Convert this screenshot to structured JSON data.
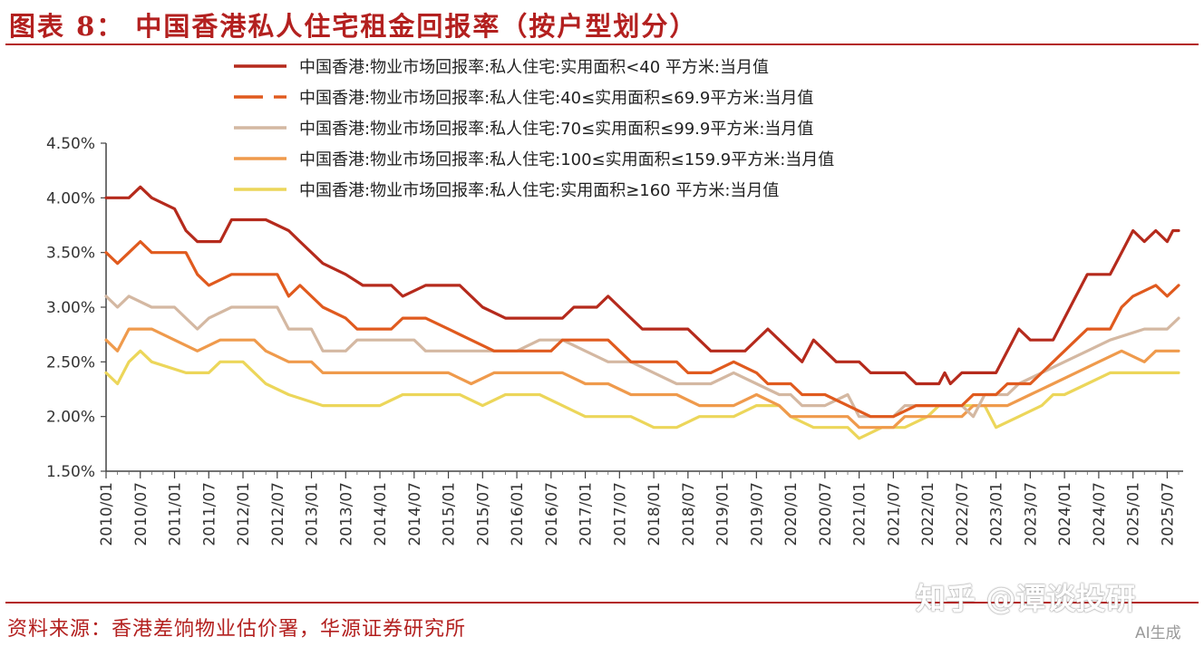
{
  "header": {
    "title": "图表 8： 中国香港私人住宅租金回报率（按户型划分）"
  },
  "footer": {
    "source": "资料来源：香港差饷物业估价署，华源证券研究所",
    "watermark": "知乎 @谭谈投研",
    "ai_tag": "AI生成"
  },
  "chart_data": {
    "type": "line",
    "title": "图表 8： 中国香港私人住宅租金回报率（按户型划分）",
    "xlabel": "",
    "ylabel": "",
    "ylim": [
      1.5,
      4.5
    ],
    "xlim": [
      "2010/01",
      "2025/09"
    ],
    "grid": false,
    "legend_position": "top",
    "y_ticks": [
      "4.50%",
      "4.00%",
      "3.50%",
      "3.00%",
      "2.50%",
      "2.00%",
      "1.50%"
    ],
    "x_ticks": [
      "2010/01",
      "2010/07",
      "2011/01",
      "2011/07",
      "2012/01",
      "2012/07",
      "2013/01",
      "2013/07",
      "2014/01",
      "2014/07",
      "2015/01",
      "2015/07",
      "2016/01",
      "2016/07",
      "2017/01",
      "2017/07",
      "2018/01",
      "2018/07",
      "2019/01",
      "2019/07",
      "2020/01",
      "2020/07",
      "2021/01",
      "2021/07",
      "2022/01",
      "2022/07",
      "2023/01",
      "2023/07",
      "2024/01",
      "2024/07",
      "2025/01",
      "2025/07"
    ],
    "series": [
      {
        "name": "中国香港:物业市场回报率:私人住宅:实用面积<40 平方米:当月值",
        "color": "#b52a1c",
        "dash": "solid",
        "points": [
          [
            "2010/01",
            4.0
          ],
          [
            "2010/05",
            4.0
          ],
          [
            "2010/07",
            4.1
          ],
          [
            "2010/09",
            4.0
          ],
          [
            "2011/01",
            3.9
          ],
          [
            "2011/03",
            3.7
          ],
          [
            "2011/05",
            3.6
          ],
          [
            "2011/09",
            3.6
          ],
          [
            "2011/11",
            3.8
          ],
          [
            "2012/05",
            3.8
          ],
          [
            "2012/09",
            3.7
          ],
          [
            "2012/11",
            3.6
          ],
          [
            "2013/03",
            3.4
          ],
          [
            "2013/07",
            3.3
          ],
          [
            "2013/10",
            3.2
          ],
          [
            "2014/03",
            3.2
          ],
          [
            "2014/05",
            3.1
          ],
          [
            "2014/09",
            3.2
          ],
          [
            "2015/03",
            3.2
          ],
          [
            "2015/07",
            3.0
          ],
          [
            "2015/11",
            2.9
          ],
          [
            "2016/09",
            2.9
          ],
          [
            "2016/11",
            3.0
          ],
          [
            "2017/03",
            3.0
          ],
          [
            "2017/05",
            3.1
          ],
          [
            "2017/07",
            3.0
          ],
          [
            "2017/09",
            2.9
          ],
          [
            "2017/11",
            2.8
          ],
          [
            "2018/07",
            2.8
          ],
          [
            "2018/09",
            2.7
          ],
          [
            "2018/11",
            2.6
          ],
          [
            "2019/05",
            2.6
          ],
          [
            "2019/09",
            2.8
          ],
          [
            "2019/11",
            2.7
          ],
          [
            "2020/01",
            2.6
          ],
          [
            "2020/03",
            2.5
          ],
          [
            "2020/05",
            2.7
          ],
          [
            "2020/07",
            2.6
          ],
          [
            "2020/09",
            2.5
          ],
          [
            "2021/01",
            2.5
          ],
          [
            "2021/03",
            2.4
          ],
          [
            "2021/09",
            2.4
          ],
          [
            "2021/11",
            2.3
          ],
          [
            "2022/03",
            2.3
          ],
          [
            "2022/04",
            2.4
          ],
          [
            "2022/05",
            2.3
          ],
          [
            "2022/07",
            2.4
          ],
          [
            "2023/01",
            2.4
          ],
          [
            "2023/03",
            2.6
          ],
          [
            "2023/05",
            2.8
          ],
          [
            "2023/07",
            2.7
          ],
          [
            "2023/11",
            2.7
          ],
          [
            "2024/01",
            2.9
          ],
          [
            "2024/03",
            3.1
          ],
          [
            "2024/05",
            3.3
          ],
          [
            "2024/09",
            3.3
          ],
          [
            "2024/11",
            3.5
          ],
          [
            "2025/01",
            3.7
          ],
          [
            "2025/03",
            3.6
          ],
          [
            "2025/05",
            3.7
          ],
          [
            "2025/07",
            3.6
          ],
          [
            "2025/08",
            3.7
          ],
          [
            "2025/09",
            3.7
          ]
        ]
      },
      {
        "name": "中国香港:物业市场回报率:私人住宅:40≤实用面积≤69.9平方米:当月值",
        "color": "#e05a1e",
        "dash": "long-dash",
        "points": [
          [
            "2010/01",
            3.5
          ],
          [
            "2010/03",
            3.4
          ],
          [
            "2010/05",
            3.5
          ],
          [
            "2010/07",
            3.6
          ],
          [
            "2010/09",
            3.5
          ],
          [
            "2011/03",
            3.5
          ],
          [
            "2011/05",
            3.3
          ],
          [
            "2011/07",
            3.2
          ],
          [
            "2011/11",
            3.3
          ],
          [
            "2012/07",
            3.3
          ],
          [
            "2012/09",
            3.1
          ],
          [
            "2012/11",
            3.2
          ],
          [
            "2013/03",
            3.0
          ],
          [
            "2013/07",
            2.9
          ],
          [
            "2013/09",
            2.8
          ],
          [
            "2014/03",
            2.8
          ],
          [
            "2014/05",
            2.9
          ],
          [
            "2014/09",
            2.9
          ],
          [
            "2015/01",
            2.8
          ],
          [
            "2015/05",
            2.7
          ],
          [
            "2015/09",
            2.6
          ],
          [
            "2016/07",
            2.6
          ],
          [
            "2016/09",
            2.7
          ],
          [
            "2017/05",
            2.7
          ],
          [
            "2017/07",
            2.6
          ],
          [
            "2017/09",
            2.5
          ],
          [
            "2018/05",
            2.5
          ],
          [
            "2018/07",
            2.4
          ],
          [
            "2018/11",
            2.4
          ],
          [
            "2019/03",
            2.5
          ],
          [
            "2019/07",
            2.4
          ],
          [
            "2019/09",
            2.3
          ],
          [
            "2020/01",
            2.3
          ],
          [
            "2020/03",
            2.2
          ],
          [
            "2020/07",
            2.2
          ],
          [
            "2020/11",
            2.1
          ],
          [
            "2021/03",
            2.0
          ],
          [
            "2021/07",
            2.0
          ],
          [
            "2021/11",
            2.1
          ],
          [
            "2022/07",
            2.1
          ],
          [
            "2022/09",
            2.2
          ],
          [
            "2023/01",
            2.2
          ],
          [
            "2023/03",
            2.3
          ],
          [
            "2023/07",
            2.3
          ],
          [
            "2023/09",
            2.4
          ],
          [
            "2023/11",
            2.5
          ],
          [
            "2024/01",
            2.6
          ],
          [
            "2024/03",
            2.7
          ],
          [
            "2024/05",
            2.8
          ],
          [
            "2024/09",
            2.8
          ],
          [
            "2024/11",
            3.0
          ],
          [
            "2025/01",
            3.1
          ],
          [
            "2025/05",
            3.2
          ],
          [
            "2025/07",
            3.1
          ],
          [
            "2025/09",
            3.2
          ]
        ]
      },
      {
        "name": "中国香港:物业市场回报率:私人住宅:70≤实用面积≤99.9平方米:当月值",
        "color": "#d4b8a2",
        "dash": "solid",
        "points": [
          [
            "2010/01",
            3.1
          ],
          [
            "2010/03",
            3.0
          ],
          [
            "2010/05",
            3.1
          ],
          [
            "2010/09",
            3.0
          ],
          [
            "2011/01",
            3.0
          ],
          [
            "2011/03",
            2.9
          ],
          [
            "2011/05",
            2.8
          ],
          [
            "2011/07",
            2.9
          ],
          [
            "2011/11",
            3.0
          ],
          [
            "2012/07",
            3.0
          ],
          [
            "2012/09",
            2.8
          ],
          [
            "2013/01",
            2.8
          ],
          [
            "2013/03",
            2.6
          ],
          [
            "2013/07",
            2.6
          ],
          [
            "2013/09",
            2.7
          ],
          [
            "2014/07",
            2.7
          ],
          [
            "2014/09",
            2.6
          ],
          [
            "2015/05",
            2.6
          ],
          [
            "2015/09",
            2.6
          ],
          [
            "2016/01",
            2.6
          ],
          [
            "2016/05",
            2.7
          ],
          [
            "2016/09",
            2.7
          ],
          [
            "2017/01",
            2.6
          ],
          [
            "2017/05",
            2.5
          ],
          [
            "2017/09",
            2.5
          ],
          [
            "2018/01",
            2.4
          ],
          [
            "2018/05",
            2.3
          ],
          [
            "2018/11",
            2.3
          ],
          [
            "2019/03",
            2.4
          ],
          [
            "2019/07",
            2.3
          ],
          [
            "2019/11",
            2.2
          ],
          [
            "2020/01",
            2.2
          ],
          [
            "2020/03",
            2.1
          ],
          [
            "2020/07",
            2.1
          ],
          [
            "2020/11",
            2.2
          ],
          [
            "2021/01",
            2.0
          ],
          [
            "2021/07",
            2.0
          ],
          [
            "2021/09",
            2.1
          ],
          [
            "2022/07",
            2.1
          ],
          [
            "2022/09",
            2.0
          ],
          [
            "2022/11",
            2.2
          ],
          [
            "2023/03",
            2.2
          ],
          [
            "2023/05",
            2.3
          ],
          [
            "2023/09",
            2.4
          ],
          [
            "2024/01",
            2.5
          ],
          [
            "2024/05",
            2.6
          ],
          [
            "2024/09",
            2.7
          ],
          [
            "2025/03",
            2.8
          ],
          [
            "2025/07",
            2.8
          ],
          [
            "2025/09",
            2.9
          ]
        ]
      },
      {
        "name": "中国香港:物业市场回报率:私人住宅:100≤实用面积≤159.9平方米:当月值",
        "color": "#ef9a4c",
        "dash": "solid",
        "points": [
          [
            "2010/01",
            2.7
          ],
          [
            "2010/03",
            2.6
          ],
          [
            "2010/05",
            2.8
          ],
          [
            "2010/09",
            2.8
          ],
          [
            "2011/01",
            2.7
          ],
          [
            "2011/05",
            2.6
          ],
          [
            "2011/09",
            2.7
          ],
          [
            "2012/03",
            2.7
          ],
          [
            "2012/05",
            2.6
          ],
          [
            "2012/09",
            2.5
          ],
          [
            "2013/01",
            2.5
          ],
          [
            "2013/03",
            2.4
          ],
          [
            "2014/09",
            2.4
          ],
          [
            "2015/01",
            2.4
          ],
          [
            "2015/05",
            2.3
          ],
          [
            "2015/09",
            2.4
          ],
          [
            "2016/09",
            2.4
          ],
          [
            "2017/01",
            2.3
          ],
          [
            "2017/05",
            2.3
          ],
          [
            "2017/09",
            2.2
          ],
          [
            "2018/05",
            2.2
          ],
          [
            "2018/09",
            2.1
          ],
          [
            "2019/03",
            2.1
          ],
          [
            "2019/07",
            2.2
          ],
          [
            "2019/11",
            2.1
          ],
          [
            "2020/01",
            2.0
          ],
          [
            "2020/07",
            2.0
          ],
          [
            "2020/11",
            2.0
          ],
          [
            "2021/01",
            1.9
          ],
          [
            "2021/07",
            1.9
          ],
          [
            "2021/09",
            2.0
          ],
          [
            "2022/07",
            2.0
          ],
          [
            "2022/09",
            2.1
          ],
          [
            "2023/03",
            2.1
          ],
          [
            "2023/07",
            2.2
          ],
          [
            "2023/11",
            2.3
          ],
          [
            "2024/03",
            2.4
          ],
          [
            "2024/07",
            2.5
          ],
          [
            "2024/11",
            2.6
          ],
          [
            "2025/03",
            2.5
          ],
          [
            "2025/05",
            2.6
          ],
          [
            "2025/09",
            2.6
          ]
        ]
      },
      {
        "name": "中国香港:物业市场回报率:私人住宅:实用面积≥160 平方米:当月值",
        "color": "#ecd65a",
        "dash": "solid",
        "points": [
          [
            "2010/01",
            2.4
          ],
          [
            "2010/03",
            2.3
          ],
          [
            "2010/05",
            2.5
          ],
          [
            "2010/07",
            2.6
          ],
          [
            "2010/09",
            2.5
          ],
          [
            "2011/03",
            2.4
          ],
          [
            "2011/07",
            2.4
          ],
          [
            "2011/09",
            2.5
          ],
          [
            "2012/01",
            2.5
          ],
          [
            "2012/05",
            2.3
          ],
          [
            "2012/09",
            2.2
          ],
          [
            "2013/03",
            2.1
          ],
          [
            "2013/07",
            2.1
          ],
          [
            "2014/01",
            2.1
          ],
          [
            "2014/05",
            2.2
          ],
          [
            "2014/09",
            2.2
          ],
          [
            "2015/03",
            2.2
          ],
          [
            "2015/07",
            2.1
          ],
          [
            "2015/11",
            2.2
          ],
          [
            "2016/05",
            2.2
          ],
          [
            "2016/09",
            2.1
          ],
          [
            "2017/01",
            2.0
          ],
          [
            "2017/09",
            2.0
          ],
          [
            "2018/01",
            1.9
          ],
          [
            "2018/05",
            1.9
          ],
          [
            "2018/09",
            2.0
          ],
          [
            "2019/03",
            2.0
          ],
          [
            "2019/07",
            2.1
          ],
          [
            "2019/11",
            2.1
          ],
          [
            "2020/01",
            2.0
          ],
          [
            "2020/05",
            1.9
          ],
          [
            "2020/11",
            1.9
          ],
          [
            "2021/01",
            1.8
          ],
          [
            "2021/05",
            1.9
          ],
          [
            "2021/09",
            1.9
          ],
          [
            "2022/01",
            2.0
          ],
          [
            "2022/03",
            2.1
          ],
          [
            "2022/11",
            2.1
          ],
          [
            "2023/01",
            1.9
          ],
          [
            "2023/05",
            2.0
          ],
          [
            "2023/09",
            2.1
          ],
          [
            "2023/11",
            2.2
          ],
          [
            "2024/01",
            2.2
          ],
          [
            "2024/05",
            2.3
          ],
          [
            "2024/09",
            2.4
          ],
          [
            "2025/01",
            2.4
          ],
          [
            "2025/09",
            2.4
          ]
        ]
      }
    ]
  }
}
